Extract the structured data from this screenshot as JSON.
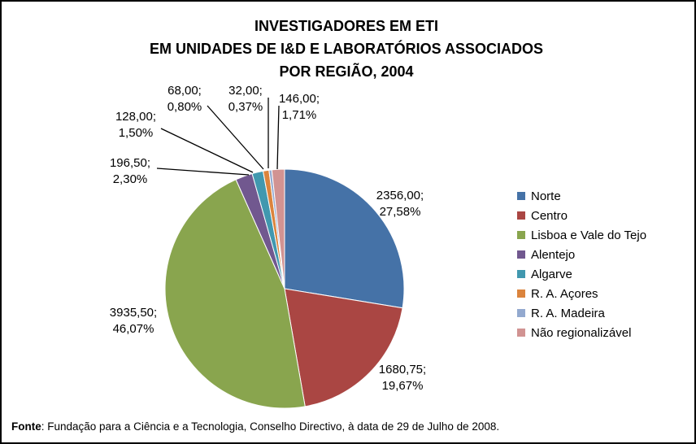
{
  "chart_data": {
    "type": "pie",
    "title_lines": [
      "INVESTIGADORES EM ETI",
      "EM UNIDADES DE I&D E LABORATÓRIOS ASSOCIADOS",
      "POR REGIÃO, 2004"
    ],
    "slices": [
      {
        "label": "Norte",
        "value": 2356.0,
        "value_text": "2356,00;",
        "percent_text": "27,58%",
        "color": "#4572A7"
      },
      {
        "label": "Centro",
        "value": 1680.75,
        "value_text": "1680,75;",
        "percent_text": "19,67%",
        "color": "#AA4643"
      },
      {
        "label": "Lisboa e Vale do Tejo",
        "value": 3935.5,
        "value_text": "3935,50;",
        "percent_text": "46,07%",
        "color": "#89A54E"
      },
      {
        "label": "Alentejo",
        "value": 196.5,
        "value_text": "196,50;",
        "percent_text": "2,30%",
        "color": "#71588F"
      },
      {
        "label": "Algarve",
        "value": 128.0,
        "value_text": "128,00;",
        "percent_text": "1,50%",
        "color": "#4198AF"
      },
      {
        "label": "R. A. Açores",
        "value": 68.0,
        "value_text": "68,00;",
        "percent_text": "0,80%",
        "color": "#DB843D"
      },
      {
        "label": "R. A. Madeira",
        "value": 32.0,
        "value_text": "32,00;",
        "percent_text": "0,37%",
        "color": "#93A9CF"
      },
      {
        "label": "Não regionalizável",
        "value": 146.0,
        "value_text": "146,00;",
        "percent_text": "1,71%",
        "color": "#D19392"
      }
    ],
    "legend_position": "right"
  },
  "footer": {
    "label": "Fonte",
    "text": ": Fundação para a Ciência e a Tecnologia, Conselho Directivo, à data de 29 de Julho de 2008."
  }
}
